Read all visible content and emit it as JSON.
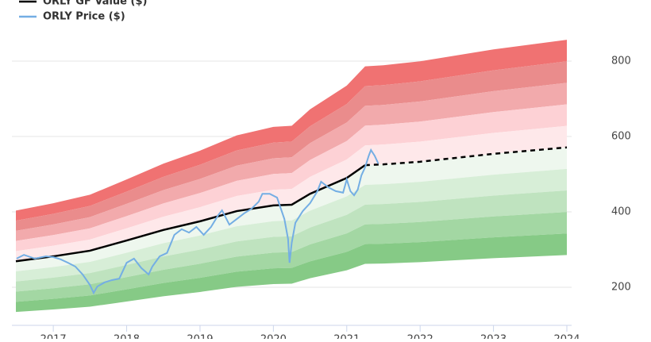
{
  "chart_data": {
    "type": "line",
    "xlim": [
      2016.49,
      2024.0
    ],
    "xticks": [
      2017,
      2018,
      2019,
      2020,
      2021,
      2022,
      2023,
      2024
    ],
    "ylim": [
      100,
      900
    ],
    "yticks": [
      200,
      400,
      600,
      800
    ],
    "grid": true,
    "series": [
      {
        "name": "ORLY GF Value ($)",
        "color": "#000000",
        "dashed_from": 2021.25,
        "x": [
          2016.49,
          2017.0,
          2017.5,
          2018.0,
          2018.5,
          2019.0,
          2019.5,
          2020.0,
          2020.25,
          2020.5,
          2021.0,
          2021.25,
          2021.5,
          2022.0,
          2023.0,
          2024.0
        ],
        "values": [
          269,
          282,
          297,
          324,
          352,
          375,
          402,
          417,
          419,
          448,
          490,
          524,
          526,
          533,
          554,
          571
        ]
      },
      {
        "name": "ORLY Price ($)",
        "color": "#74aee4",
        "x": [
          2016.5,
          2016.6,
          2016.75,
          2016.9,
          2017.0,
          2017.1,
          2017.2,
          2017.3,
          2017.4,
          2017.5,
          2017.55,
          2017.6,
          2017.7,
          2017.8,
          2017.9,
          2018.0,
          2018.1,
          2018.2,
          2018.3,
          2018.35,
          2018.45,
          2018.55,
          2018.65,
          2018.75,
          2018.85,
          2018.95,
          2019.05,
          2019.15,
          2019.25,
          2019.3,
          2019.4,
          2019.5,
          2019.6,
          2019.7,
          2019.8,
          2019.85,
          2019.95,
          2020.05,
          2020.15,
          2020.2,
          2020.22,
          2020.25,
          2020.3,
          2020.4,
          2020.5,
          2020.6,
          2020.65,
          2020.75,
          2020.85,
          2020.95,
          2021.0,
          2021.05,
          2021.1,
          2021.15,
          2021.2,
          2021.25,
          2021.3,
          2021.33,
          2021.38,
          2021.43
        ],
        "values": [
          276,
          286,
          276,
          282,
          280,
          274,
          265,
          255,
          234,
          206,
          185,
          202,
          213,
          219,
          223,
          265,
          276,
          251,
          234,
          255,
          282,
          291,
          339,
          354,
          345,
          360,
          339,
          360,
          392,
          404,
          366,
          381,
          396,
          408,
          427,
          448,
          448,
          438,
          381,
          328,
          265,
          318,
          371,
          402,
          423,
          455,
          480,
          465,
          455,
          451,
          486,
          455,
          444,
          459,
          497,
          518,
          549,
          564,
          549,
          528
        ]
      }
    ],
    "bands": [
      {
        "low": 1.4,
        "high": 1.5,
        "color": "#f07272"
      },
      {
        "low": 1.3,
        "high": 1.4,
        "color": "#ea8c8c"
      },
      {
        "low": 1.2,
        "high": 1.3,
        "color": "#f2aaac"
      },
      {
        "low": 1.1,
        "high": 1.2,
        "color": "#fdd1d5"
      },
      {
        "low": 1.0,
        "high": 1.1,
        "color": "#fee8ea"
      },
      {
        "low": 0.9,
        "high": 1.0,
        "color": "#eef7ee"
      },
      {
        "low": 0.8,
        "high": 0.9,
        "color": "#d7eed7"
      },
      {
        "low": 0.7,
        "high": 0.8,
        "color": "#bfe3bf"
      },
      {
        "low": 0.6,
        "high": 0.7,
        "color": "#a3d7a3"
      },
      {
        "low": 0.5,
        "high": 0.6,
        "color": "#86ca86"
      }
    ]
  }
}
